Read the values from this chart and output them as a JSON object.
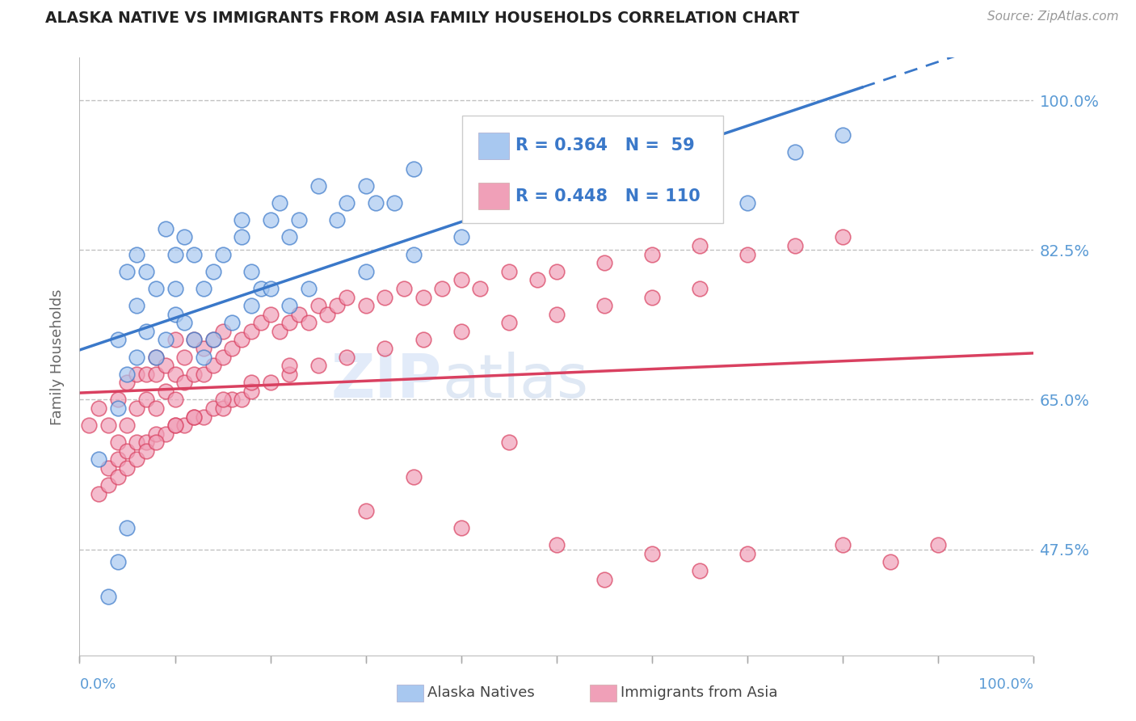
{
  "title": "ALASKA NATIVE VS IMMIGRANTS FROM ASIA FAMILY HOUSEHOLDS CORRELATION CHART",
  "source": "Source: ZipAtlas.com",
  "ylabel": "Family Households",
  "ytick_labels": [
    "47.5%",
    "65.0%",
    "82.5%",
    "100.0%"
  ],
  "ytick_values": [
    0.475,
    0.65,
    0.825,
    1.0
  ],
  "watermark_zip": "ZIP",
  "watermark_atlas": "atlas",
  "blue_color": "#a8c8f0",
  "pink_color": "#f0a0b8",
  "blue_line_color": "#3a78c9",
  "pink_line_color": "#d94060",
  "title_color": "#222222",
  "tick_color": "#5b9bd5",
  "background_color": "#ffffff",
  "grid_color": "#bbbbbb",
  "xlim": [
    0.0,
    1.0
  ],
  "ylim": [
    0.35,
    1.05
  ],
  "blue_x": [
    0.02,
    0.04,
    0.05,
    0.06,
    0.06,
    0.07,
    0.08,
    0.09,
    0.1,
    0.1,
    0.11,
    0.12,
    0.13,
    0.14,
    0.15,
    0.17,
    0.17,
    0.18,
    0.19,
    0.2,
    0.21,
    0.22,
    0.23,
    0.25,
    0.27,
    0.28,
    0.3,
    0.31,
    0.33,
    0.35,
    0.04,
    0.05,
    0.06,
    0.07,
    0.08,
    0.09,
    0.1,
    0.11,
    0.12,
    0.13,
    0.14,
    0.16,
    0.18,
    0.2,
    0.22,
    0.24,
    0.3,
    0.35,
    0.4,
    0.5,
    0.55,
    0.6,
    0.65,
    0.7,
    0.75,
    0.8,
    0.03,
    0.04,
    0.05
  ],
  "blue_y": [
    0.58,
    0.72,
    0.8,
    0.76,
    0.82,
    0.8,
    0.78,
    0.85,
    0.82,
    0.78,
    0.84,
    0.82,
    0.78,
    0.8,
    0.82,
    0.86,
    0.84,
    0.8,
    0.78,
    0.86,
    0.88,
    0.84,
    0.86,
    0.9,
    0.86,
    0.88,
    0.9,
    0.88,
    0.88,
    0.92,
    0.64,
    0.68,
    0.7,
    0.73,
    0.7,
    0.72,
    0.75,
    0.74,
    0.72,
    0.7,
    0.72,
    0.74,
    0.76,
    0.78,
    0.76,
    0.78,
    0.8,
    0.82,
    0.84,
    0.88,
    0.9,
    0.88,
    0.92,
    0.88,
    0.94,
    0.96,
    0.42,
    0.46,
    0.5
  ],
  "pink_x": [
    0.01,
    0.02,
    0.03,
    0.04,
    0.04,
    0.05,
    0.05,
    0.06,
    0.06,
    0.07,
    0.07,
    0.08,
    0.08,
    0.08,
    0.09,
    0.09,
    0.1,
    0.1,
    0.1,
    0.11,
    0.11,
    0.12,
    0.12,
    0.13,
    0.13,
    0.14,
    0.14,
    0.15,
    0.15,
    0.16,
    0.17,
    0.18,
    0.19,
    0.2,
    0.21,
    0.22,
    0.23,
    0.24,
    0.25,
    0.26,
    0.27,
    0.28,
    0.3,
    0.32,
    0.34,
    0.36,
    0.38,
    0.4,
    0.42,
    0.45,
    0.48,
    0.5,
    0.55,
    0.6,
    0.65,
    0.7,
    0.75,
    0.8,
    0.03,
    0.04,
    0.05,
    0.06,
    0.07,
    0.08,
    0.09,
    0.1,
    0.11,
    0.12,
    0.13,
    0.14,
    0.15,
    0.16,
    0.17,
    0.18,
    0.2,
    0.22,
    0.25,
    0.28,
    0.32,
    0.36,
    0.4,
    0.45,
    0.5,
    0.55,
    0.6,
    0.65,
    0.02,
    0.03,
    0.04,
    0.05,
    0.06,
    0.07,
    0.08,
    0.1,
    0.12,
    0.15,
    0.18,
    0.22,
    0.35,
    0.45,
    0.3,
    0.4,
    0.5,
    0.6,
    0.7,
    0.8,
    0.85,
    0.9,
    0.55,
    0.65
  ],
  "pink_y": [
    0.62,
    0.64,
    0.62,
    0.6,
    0.65,
    0.62,
    0.67,
    0.64,
    0.68,
    0.65,
    0.68,
    0.64,
    0.68,
    0.7,
    0.66,
    0.69,
    0.65,
    0.68,
    0.72,
    0.67,
    0.7,
    0.68,
    0.72,
    0.68,
    0.71,
    0.69,
    0.72,
    0.7,
    0.73,
    0.71,
    0.72,
    0.73,
    0.74,
    0.75,
    0.73,
    0.74,
    0.75,
    0.74,
    0.76,
    0.75,
    0.76,
    0.77,
    0.76,
    0.77,
    0.78,
    0.77,
    0.78,
    0.79,
    0.78,
    0.8,
    0.79,
    0.8,
    0.81,
    0.82,
    0.83,
    0.82,
    0.83,
    0.84,
    0.57,
    0.58,
    0.59,
    0.6,
    0.6,
    0.61,
    0.61,
    0.62,
    0.62,
    0.63,
    0.63,
    0.64,
    0.64,
    0.65,
    0.65,
    0.66,
    0.67,
    0.68,
    0.69,
    0.7,
    0.71,
    0.72,
    0.73,
    0.74,
    0.75,
    0.76,
    0.77,
    0.78,
    0.54,
    0.55,
    0.56,
    0.57,
    0.58,
    0.59,
    0.6,
    0.62,
    0.63,
    0.65,
    0.67,
    0.69,
    0.56,
    0.6,
    0.52,
    0.5,
    0.48,
    0.47,
    0.47,
    0.48,
    0.46,
    0.48,
    0.44,
    0.45
  ]
}
